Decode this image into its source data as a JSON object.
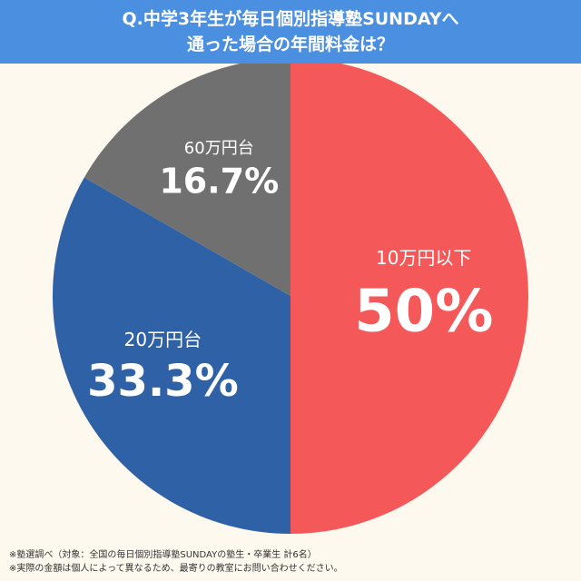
{
  "header": {
    "title_line1": "Q.中学3年生が毎日個別指導塾SUNDAYへ",
    "title_line2": "通った場合の年間料金は？"
  },
  "chart_data": {
    "type": "pie",
    "slices": [
      {
        "label": "10万円以下",
        "value": 50,
        "display": "50%",
        "color": "#f45858"
      },
      {
        "label": "20万円台",
        "value": 33.3,
        "display": "33.3%",
        "color": "#2f61a6"
      },
      {
        "label": "60万円台",
        "value": 16.7,
        "display": "16.7%",
        "color": "#707070"
      }
    ],
    "start_angle": "12 o'clock",
    "direction": "clockwise",
    "label_color": "#ffffff"
  },
  "footnotes": {
    "line1": "※塾選調べ（対象：全国の毎日個別指導塾SUNDAYの塾生・卒業生 計6名）",
    "line2": "※実際の金額は個人によって異なるため、最寄りの教室にお問い合わせください。"
  },
  "colors": {
    "header_bg": "#4a8fe0",
    "page_bg": "#fdf9ef"
  }
}
